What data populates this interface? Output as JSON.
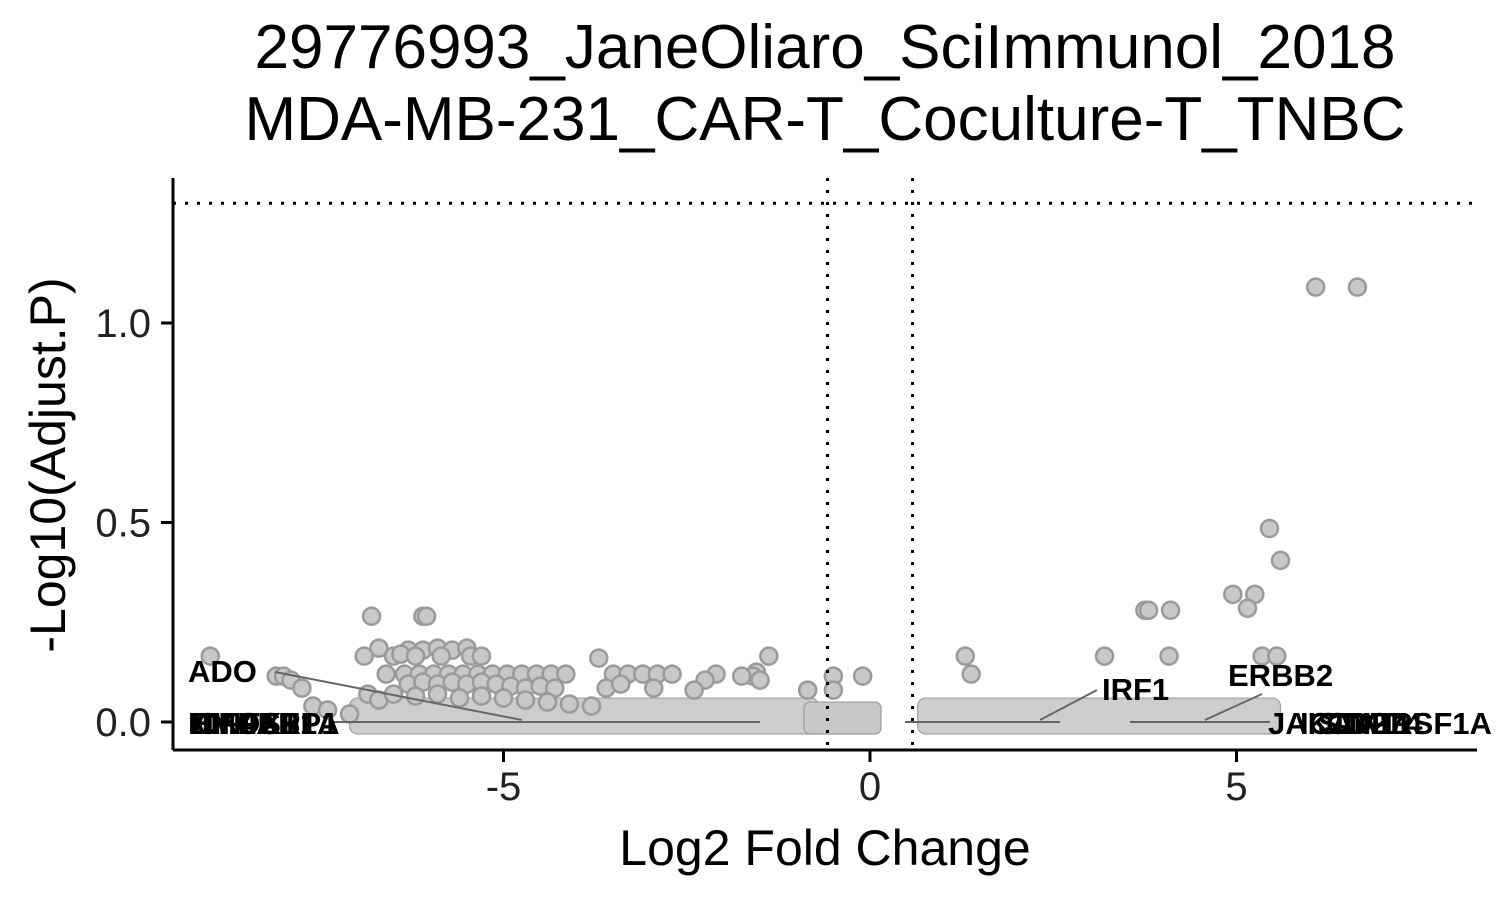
{
  "chart_data": {
    "type": "scatter",
    "title": "29776993_JaneOliaro_SciImmunol_2018",
    "subtitle": "MDA-MB-231_CAR-T_Coculture-T_TNBC",
    "xlabel": "Log2 Fold Change",
    "ylabel": "-Log10(Adjust.P)",
    "xlim": [
      -9.3,
      8.4
    ],
    "ylim": [
      -0.06,
      1.36
    ],
    "x_ticks": [
      -5,
      0,
      5
    ],
    "x_tick_labels": [
      "-5",
      "0",
      "5"
    ],
    "y_ticks": [
      0.0,
      0.5,
      1.0
    ],
    "y_tick_labels": [
      "0.0",
      "0.5",
      "1.0"
    ],
    "thresholds": {
      "log2fc": [
        -0.58,
        0.58
      ],
      "neg_log10_p": 1.3
    },
    "grid": false,
    "legend": "none",
    "colors": {
      "point_fill": "#c8c8c8",
      "point_stroke": "#9a9a9a",
      "axis": "#000000",
      "connector": "#666666"
    },
    "points": [
      [
        6.08,
        1.09
      ],
      [
        6.65,
        1.09
      ],
      [
        5.45,
        0.485
      ],
      [
        5.6,
        0.405
      ],
      [
        4.95,
        0.32
      ],
      [
        5.25,
        0.32
      ],
      [
        5.15,
        0.285
      ],
      [
        3.75,
        0.28
      ],
      [
        3.8,
        0.28
      ],
      [
        4.1,
        0.28
      ],
      [
        5.35,
        0.165
      ],
      [
        5.55,
        0.165
      ],
      [
        4.08,
        0.165
      ],
      [
        3.2,
        0.165
      ],
      [
        1.3,
        0.165
      ],
      [
        1.38,
        0.12
      ],
      [
        -1.38,
        0.165
      ],
      [
        -0.5,
        0.115
      ],
      [
        -0.1,
        0.115
      ],
      [
        -0.5,
        0.08
      ],
      [
        -0.85,
        0.08
      ],
      [
        -1.55,
        0.125
      ],
      [
        -1.6,
        0.115
      ],
      [
        -1.5,
        0.105
      ],
      [
        -1.75,
        0.115
      ],
      [
        -2.1,
        0.12
      ],
      [
        -2.25,
        0.105
      ],
      [
        -3.7,
        0.16
      ],
      [
        -3.5,
        0.12
      ],
      [
        -3.3,
        0.12
      ],
      [
        -3.1,
        0.12
      ],
      [
        -2.9,
        0.12
      ],
      [
        -2.7,
        0.12
      ],
      [
        -3.6,
        0.085
      ],
      [
        -3.4,
        0.095
      ],
      [
        -2.95,
        0.085
      ],
      [
        -2.4,
        0.08
      ],
      [
        -9.0,
        0.165
      ],
      [
        -8.1,
        0.115
      ],
      [
        -8.0,
        0.115
      ],
      [
        -7.9,
        0.105
      ],
      [
        -7.75,
        0.085
      ],
      [
        -7.6,
        0.04
      ],
      [
        -7.4,
        0.03
      ],
      [
        -7.1,
        0.02
      ],
      [
        -6.85,
        0.07
      ],
      [
        -6.7,
        0.055
      ],
      [
        -6.8,
        0.265
      ],
      [
        -6.1,
        0.265
      ],
      [
        -6.05,
        0.265
      ],
      [
        -6.7,
        0.185
      ],
      [
        -6.3,
        0.18
      ],
      [
        -6.1,
        0.18
      ],
      [
        -5.9,
        0.185
      ],
      [
        -5.7,
        0.18
      ],
      [
        -5.5,
        0.185
      ],
      [
        -6.9,
        0.165
      ],
      [
        -6.5,
        0.165
      ],
      [
        -6.4,
        0.17
      ],
      [
        -6.2,
        0.165
      ],
      [
        -5.85,
        0.165
      ],
      [
        -5.45,
        0.165
      ],
      [
        -5.3,
        0.165
      ],
      [
        -6.6,
        0.12
      ],
      [
        -6.35,
        0.12
      ],
      [
        -6.15,
        0.12
      ],
      [
        -5.95,
        0.12
      ],
      [
        -5.75,
        0.12
      ],
      [
        -5.55,
        0.12
      ],
      [
        -5.35,
        0.12
      ],
      [
        -5.15,
        0.12
      ],
      [
        -4.95,
        0.12
      ],
      [
        -4.75,
        0.12
      ],
      [
        -4.55,
        0.12
      ],
      [
        -4.35,
        0.12
      ],
      [
        -4.15,
        0.12
      ],
      [
        -6.3,
        0.095
      ],
      [
        -6.1,
        0.1
      ],
      [
        -5.9,
        0.095
      ],
      [
        -5.7,
        0.1
      ],
      [
        -5.5,
        0.095
      ],
      [
        -5.3,
        0.1
      ],
      [
        -5.1,
        0.095
      ],
      [
        -4.9,
        0.09
      ],
      [
        -4.7,
        0.085
      ],
      [
        -4.5,
        0.09
      ],
      [
        -4.3,
        0.085
      ],
      [
        -6.5,
        0.07
      ],
      [
        -6.2,
        0.065
      ],
      [
        -5.9,
        0.07
      ],
      [
        -5.6,
        0.06
      ],
      [
        -5.3,
        0.065
      ],
      [
        -5.0,
        0.06
      ],
      [
        -4.7,
        0.055
      ],
      [
        -4.4,
        0.05
      ],
      [
        -4.1,
        0.045
      ],
      [
        -3.8,
        0.04
      ]
    ],
    "labels_left": [
      "ADO",
      "HMOX1",
      "EIF4EBP1",
      "CFLAR",
      "TNFSF1A"
    ],
    "labels_right": [
      "IRF1",
      "ERBB2",
      "JAK1",
      "ICAM1",
      "STAT1",
      "CD274",
      "TNFRSF1A"
    ]
  }
}
